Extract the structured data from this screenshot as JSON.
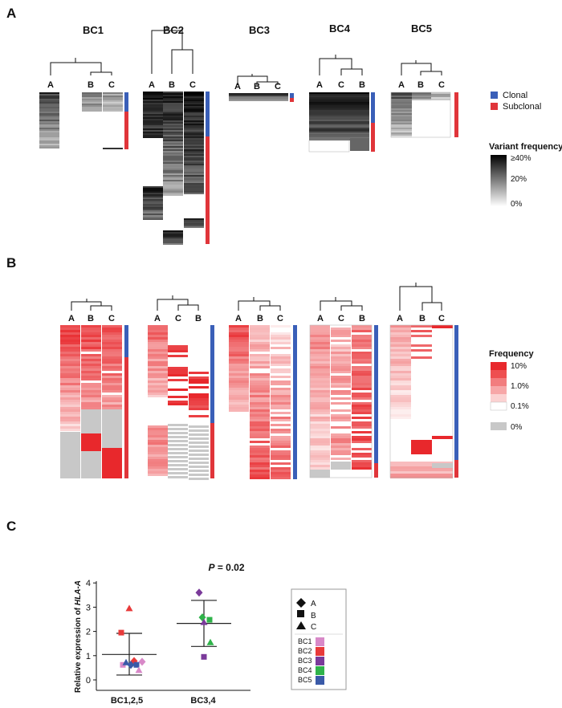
{
  "panelA": {
    "letter": "A",
    "groups": [
      {
        "title": "BC1",
        "cols": [
          "A",
          "B",
          "C"
        ]
      },
      {
        "title": "BC2",
        "cols": [
          "A",
          "B",
          "C"
        ]
      },
      {
        "title": "BC3",
        "cols": [
          "A",
          "B",
          "C"
        ]
      },
      {
        "title": "BC4",
        "cols": [
          "A",
          "C",
          "B"
        ]
      },
      {
        "title": "BC5",
        "cols": [
          "A",
          "B",
          "C"
        ]
      }
    ],
    "legend": {
      "clonal": "Clonal",
      "subclonal": "Subclonal",
      "vf_title": "Variant frequency",
      "vf_ticks": [
        "≥40%",
        "20%",
        "0%"
      ]
    }
  },
  "panelB": {
    "letter": "B",
    "groups": [
      {
        "cols": [
          "A",
          "B",
          "C"
        ]
      },
      {
        "cols": [
          "A",
          "C",
          "B"
        ]
      },
      {
        "cols": [
          "A",
          "B",
          "C"
        ]
      },
      {
        "cols": [
          "A",
          "C",
          "B"
        ]
      },
      {
        "cols": [
          "A",
          "B",
          "C"
        ]
      }
    ],
    "legend": {
      "title": "Frequency",
      "ticks": [
        "10%",
        "1.0%",
        "0.1%",
        "0%"
      ]
    }
  },
  "panelC": {
    "letter": "C",
    "pvalue_prefix": "P",
    "pvalue_rest": " = 0.02",
    "ylabel_prefix": "Relative expression of ",
    "ylabel_gene": "HLA-A",
    "legend": {
      "shapes": [
        {
          "icon": "diamond",
          "label": "A"
        },
        {
          "icon": "square",
          "label": "B"
        },
        {
          "icon": "triangle",
          "label": "C"
        }
      ],
      "samples": [
        {
          "label": "BC1",
          "color": "#d889c8"
        },
        {
          "label": "BC2",
          "color": "#e83a3a"
        },
        {
          "label": "BC3",
          "color": "#7a3a9a"
        },
        {
          "label": "BC4",
          "color": "#2fb34a"
        },
        {
          "label": "BC5",
          "color": "#3a5aa8"
        }
      ]
    },
    "chart_data": {
      "type": "scatter",
      "categories": [
        "BC1,2,5",
        "BC3,4"
      ],
      "ylim": [
        0,
        4
      ],
      "yticks": [
        "0",
        "1",
        "2",
        "3",
        "4"
      ],
      "series": [
        {
          "category": "BC1,2,5",
          "mean": 1.05,
          "sd_low": 0.2,
          "sd_high": 1.92,
          "points": [
            {
              "sample": "BC2",
              "shape": "triangle",
              "y": 2.95
            },
            {
              "sample": "BC2",
              "shape": "square",
              "y": 1.95
            },
            {
              "sample": "BC2",
              "shape": "diamond",
              "y": 0.78
            },
            {
              "sample": "BC1",
              "shape": "square",
              "y": 0.62
            },
            {
              "sample": "BC5",
              "shape": "triangle",
              "y": 0.72
            },
            {
              "sample": "BC5",
              "shape": "diamond",
              "y": 0.62
            },
            {
              "sample": "BC5",
              "shape": "square",
              "y": 0.62
            },
            {
              "sample": "BC1",
              "shape": "triangle",
              "y": 0.4
            },
            {
              "sample": "BC1",
              "shape": "diamond",
              "y": 0.75
            }
          ]
        },
        {
          "category": "BC3,4",
          "mean": 2.33,
          "sd_low": 1.38,
          "sd_high": 3.28,
          "points": [
            {
              "sample": "BC3",
              "shape": "diamond",
              "y": 3.6
            },
            {
              "sample": "BC4",
              "shape": "diamond",
              "y": 2.58
            },
            {
              "sample": "BC4",
              "shape": "square",
              "y": 2.48
            },
            {
              "sample": "BC3",
              "shape": "triangle",
              "y": 2.38
            },
            {
              "sample": "BC4",
              "shape": "triangle",
              "y": 1.55
            },
            {
              "sample": "BC3",
              "shape": "square",
              "y": 0.95
            }
          ]
        }
      ]
    }
  },
  "colors": {
    "clonal": "#3a5fb8",
    "subclonal": "#e0353a",
    "freq_high": "#e8282c",
    "freq_zero": "#c8c8c8"
  }
}
